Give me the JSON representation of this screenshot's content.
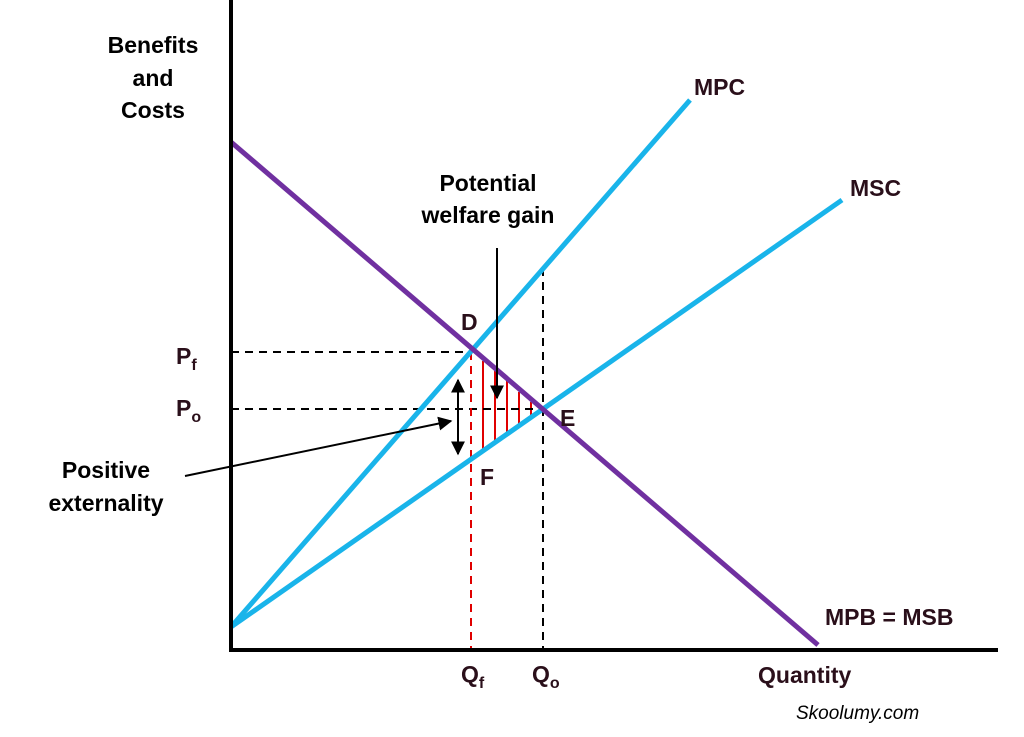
{
  "axis_label": {
    "lines": [
      "Benefits",
      "and",
      "Costs"
    ]
  },
  "x_axis_label": "Quantity",
  "curves": {
    "mpc": "MPC",
    "msc": "MSC",
    "mpb": "MPB = MSB"
  },
  "points": {
    "d": "D",
    "e": "E",
    "f": "F"
  },
  "prices": [
    {
      "main": "P",
      "sub": "f"
    },
    {
      "main": "P",
      "sub": "o"
    }
  ],
  "quantities": [
    {
      "main": "Q",
      "sub": "f"
    },
    {
      "main": "Q",
      "sub": "o"
    }
  ],
  "welfare_gain": {
    "lines": [
      "Potential",
      "welfare gain"
    ]
  },
  "externality": {
    "lines": [
      "Positive",
      "externality"
    ]
  },
  "source": "Skoolumy.com"
}
